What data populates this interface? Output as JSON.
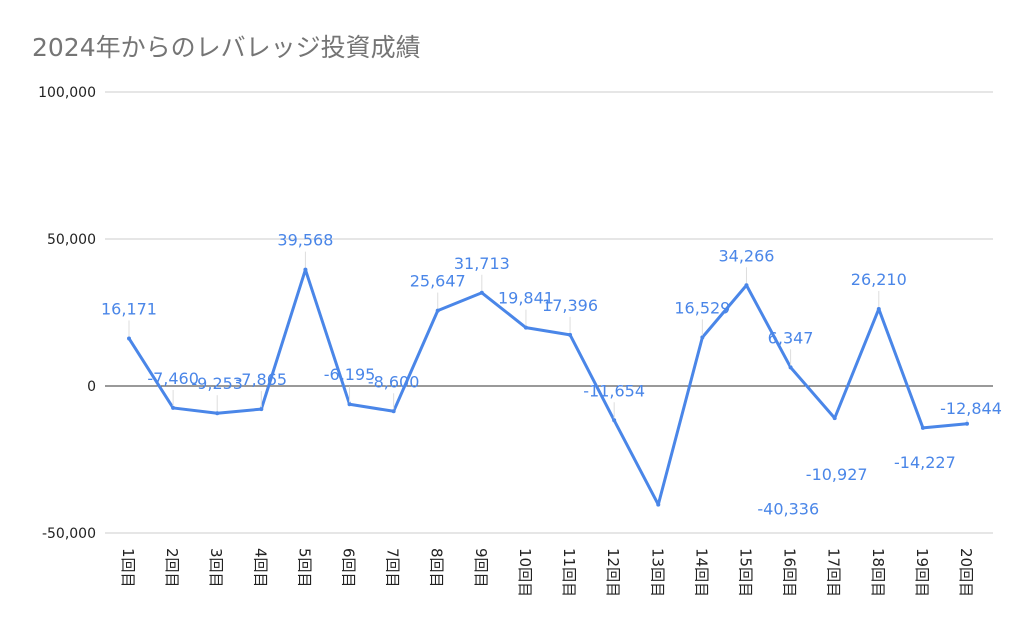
{
  "chart_data": {
    "type": "line",
    "title": "2024年からのレバレッジ投資成績",
    "categories": [
      "1回目",
      "2回目",
      "3回目",
      "4回目",
      "5回目",
      "6回目",
      "7回目",
      "8回目",
      "9回目",
      "10回目",
      "11回目",
      "12回目",
      "13回目",
      "14回目",
      "15回目",
      "16回目",
      "17回目",
      "18回目",
      "19回目",
      "20回目"
    ],
    "values": [
      16171,
      -7460,
      -9253,
      -7865,
      39568,
      -6195,
      -8600,
      25647,
      31713,
      19841,
      17396,
      -11654,
      -40336,
      16529,
      34266,
      6347,
      -10927,
      26210,
      -14227,
      -12844
    ],
    "data_labels": [
      "16,171",
      "-7,460",
      "-9,253",
      "-7,865",
      "39,568",
      "-6,195",
      "-8,600",
      "25,647",
      "31,713",
      "19,841",
      "17,396",
      "-11,654",
      "-40,336",
      "16,529",
      "34,266",
      "6,347",
      "-10,927",
      "26,210",
      "-14,227",
      "-12,844"
    ],
    "yticks": [
      "-50,000",
      "0",
      "50,000",
      "100,000"
    ],
    "ytick_values": [
      -50000,
      0,
      50000,
      100000
    ],
    "ylim": [
      -50000,
      100000
    ],
    "grid": true,
    "color": "#4a86e8"
  }
}
